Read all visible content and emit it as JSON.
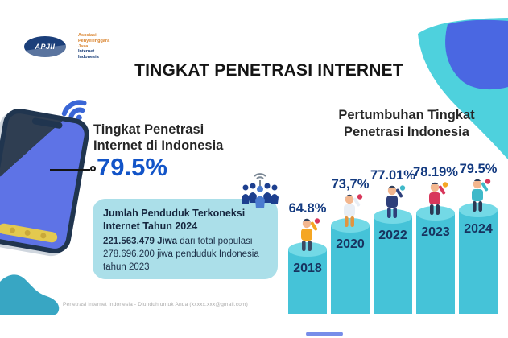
{
  "header": {
    "logo": {
      "abbr": "APJII",
      "org_lines": [
        "Asosiasi",
        "Penyelenggara",
        "Jasa",
        "Internet",
        "Indonesia"
      ]
    },
    "title": "TINGKAT PENETRASI INTERNET"
  },
  "left_panel": {
    "heading_line1": "Tingkat Penetrasi",
    "heading_line2": "Internet di Indonesia",
    "big_value": "79.5%",
    "info_box": {
      "title_line1": "Jumlah Penduduk Terkoneksi",
      "title_line2": "Internet Tahun 2024",
      "highlight": "221.563.479 Jiwa",
      "after_highlight": " dari total populasi",
      "line2": "278.696.200 jiwa penduduk Indonesia",
      "line3": "tahun 2023"
    }
  },
  "right_panel": {
    "heading_line1": "Pertumbuhan Tingkat",
    "heading_line2": "Penetrasi Indonesia"
  },
  "chart_data": {
    "type": "bar",
    "title": "Pertumbuhan Tingkat Penetrasi Indonesia",
    "categories": [
      "2018",
      "2020",
      "2022",
      "2023",
      "2024"
    ],
    "values": [
      64.8,
      73.7,
      77.01,
      78.19,
      79.5
    ],
    "value_labels": [
      "64.8%",
      "73,7%",
      "77.01%",
      "78.19%",
      "79.5%"
    ],
    "xlabel": "",
    "ylabel": "",
    "ylim": [
      0,
      100
    ],
    "legend": "none",
    "grid": false,
    "bar_color": "#45c3d8",
    "bar_top_color": "#73d9e6",
    "year_color": "#17335f",
    "label_color": "#133a80",
    "people": [
      {
        "name": "person-2018",
        "shirt": "#f5a623",
        "pants": "#3b4a63",
        "accent": "#d8375b"
      },
      {
        "name": "person-2020",
        "shirt": "#e8eef5",
        "pants": "#e2953f",
        "accent": "#d8375b"
      },
      {
        "name": "person-2022",
        "shirt": "#2e3f7a",
        "pants": "#2e3f7a",
        "accent": "#3fb9c9"
      },
      {
        "name": "person-2023",
        "shirt": "#d8375b",
        "pants": "#2b3a55",
        "accent": "#f5a623"
      },
      {
        "name": "person-2024",
        "shirt": "#3fb9c9",
        "pants": "#2b3a55",
        "accent": "#d8375b"
      }
    ]
  },
  "footer": {
    "watermark": "Penetrasi Internet Indonesia - Diunduh untuk Anda (xxxxx.xxx@gmail.com)"
  },
  "colors": {
    "accent_blue": "#1254c8",
    "teal_blob": "#4ed1dd",
    "teal_blob_dark": "#38a6c3",
    "blue_blob": "#4a67e2",
    "info_box_bg": "#abdfe9",
    "title_text": "#141414"
  }
}
